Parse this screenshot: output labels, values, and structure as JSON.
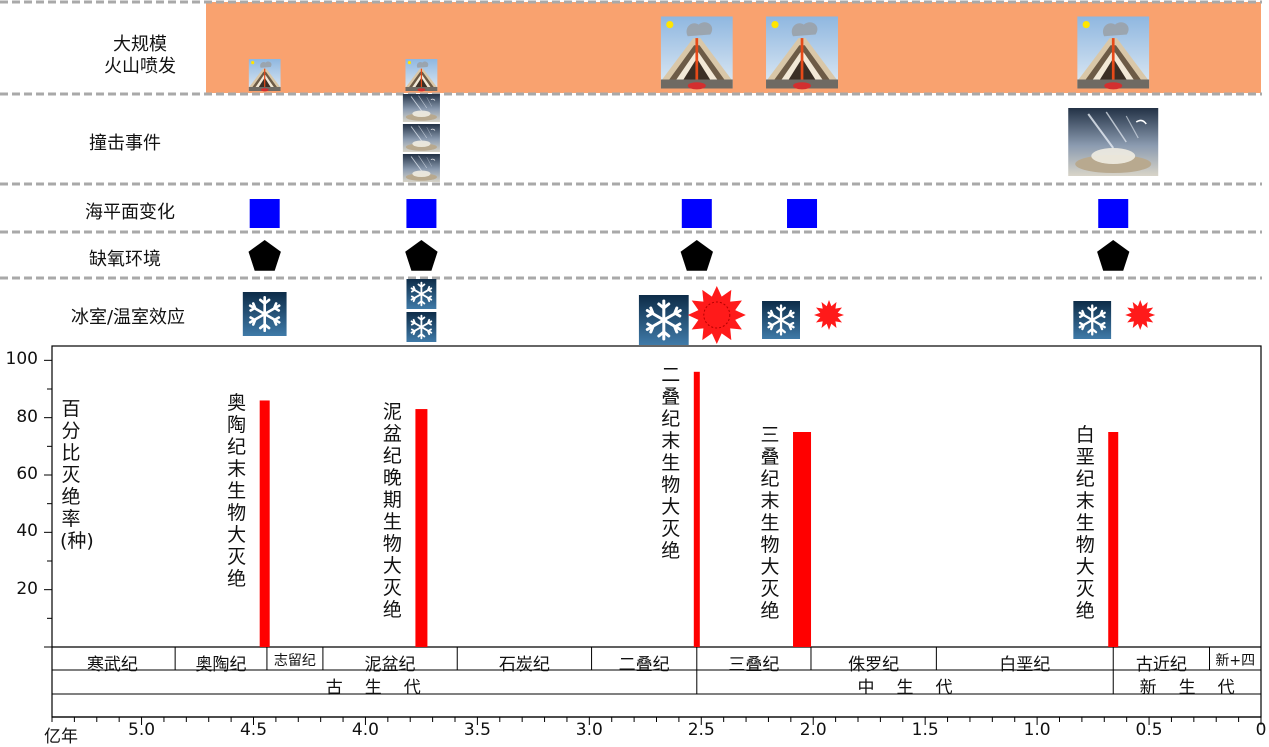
{
  "rows": {
    "volcano": "大规模\n火山喷发",
    "impact": "撞击事件",
    "sealevel": "海平面变化",
    "anoxia": "缺氧环境",
    "climate": "冰室/温室效应"
  },
  "y_axis_title": "百分比灭绝率(种)",
  "x_axis_unit": "亿年",
  "events": [
    {
      "name": "奥陶纪末生物大灭绝",
      "age": 4.45,
      "extinction": 86,
      "volcano": "small",
      "impact": 0,
      "sealevel": true,
      "anoxia": true,
      "ice": 1,
      "heat": "none"
    },
    {
      "name": "泥盆纪晚期生物大灭绝",
      "age": 3.75,
      "extinction": 83,
      "volcano": "small",
      "impact": 3,
      "sealevel": true,
      "anoxia": true,
      "ice": 2,
      "heat": "none"
    },
    {
      "name": "二叠纪末生物大灭绝",
      "age": 2.52,
      "extinction": 96,
      "volcano": "large",
      "impact": 0,
      "sealevel": true,
      "anoxia": true,
      "ice": 1,
      "heat": "large"
    },
    {
      "name": "三叠纪末生物大灭绝",
      "age": 2.05,
      "extinction": 75,
      "volcano": "large",
      "impact": 0,
      "sealevel": true,
      "anoxia": false,
      "ice": 1,
      "heat": "small"
    },
    {
      "name": "白垩纪末生物大灭绝",
      "age": 0.66,
      "extinction": 75,
      "volcano": "large",
      "impact": 1,
      "sealevel": true,
      "anoxia": true,
      "ice": 1,
      "heat": "small"
    }
  ],
  "chart_data": {
    "type": "bar",
    "xlabel": "亿年",
    "ylabel": "百分比灭绝率(种)",
    "x_ticks": [
      "5.0",
      "4.5",
      "4.0",
      "3.5",
      "3.0",
      "2.5",
      "2.0",
      "1.5",
      "1.0",
      "0.5",
      "0"
    ],
    "y_ticks": [
      "20",
      "40",
      "60",
      "80",
      "100"
    ],
    "xlim": [
      5.4,
      0
    ],
    "ylim": [
      0,
      105
    ],
    "categories": [
      "奥陶纪末生物大灭绝",
      "泥盆纪晚期生物大灭绝",
      "二叠纪末生物大灭绝",
      "三叠纪末生物大灭绝",
      "白垩纪末生物大灭绝"
    ],
    "x": [
      4.45,
      3.75,
      2.52,
      2.05,
      0.66
    ],
    "values": [
      86,
      83,
      96,
      75,
      75
    ]
  },
  "periods": [
    {
      "name": "寒武纪",
      "start": 5.41,
      "end": 4.85
    },
    {
      "name": "奥陶纪",
      "start": 4.85,
      "end": 4.44
    },
    {
      "name": "志留纪",
      "start": 4.44,
      "end": 4.19
    },
    {
      "name": "泥盆纪",
      "start": 4.19,
      "end": 3.59
    },
    {
      "name": "石炭纪",
      "start": 3.59,
      "end": 2.99
    },
    {
      "name": "二叠纪",
      "start": 2.99,
      "end": 2.52
    },
    {
      "name": "三叠纪",
      "start": 2.52,
      "end": 2.01
    },
    {
      "name": "侏罗纪",
      "start": 2.01,
      "end": 1.45
    },
    {
      "name": "白垩纪",
      "start": 1.45,
      "end": 0.66
    },
    {
      "name": "古近纪",
      "start": 0.66,
      "end": 0.23
    },
    {
      "name": "新+四",
      "start": 0.23,
      "end": 0.0
    }
  ],
  "eras": [
    {
      "name": "古生代",
      "start": 5.41,
      "end": 2.52
    },
    {
      "name": "中生代",
      "start": 2.52,
      "end": 0.66
    },
    {
      "name": "新生代",
      "start": 0.66,
      "end": 0.0
    }
  ],
  "colors": {
    "volcano_band": "#f9a26f",
    "bar": "#ff0000",
    "sealevel": "#0000ff",
    "anoxia": "#000000",
    "heat": "#ff1a1a"
  },
  "icons": {
    "volcano": "volcano-cross-section-icon",
    "impact": "asteroid-impact-icon",
    "sealevel": "blue-square-icon",
    "anoxia": "black-pentagon-icon",
    "ice": "snowflake-icon",
    "heat": "red-sun-icon"
  }
}
